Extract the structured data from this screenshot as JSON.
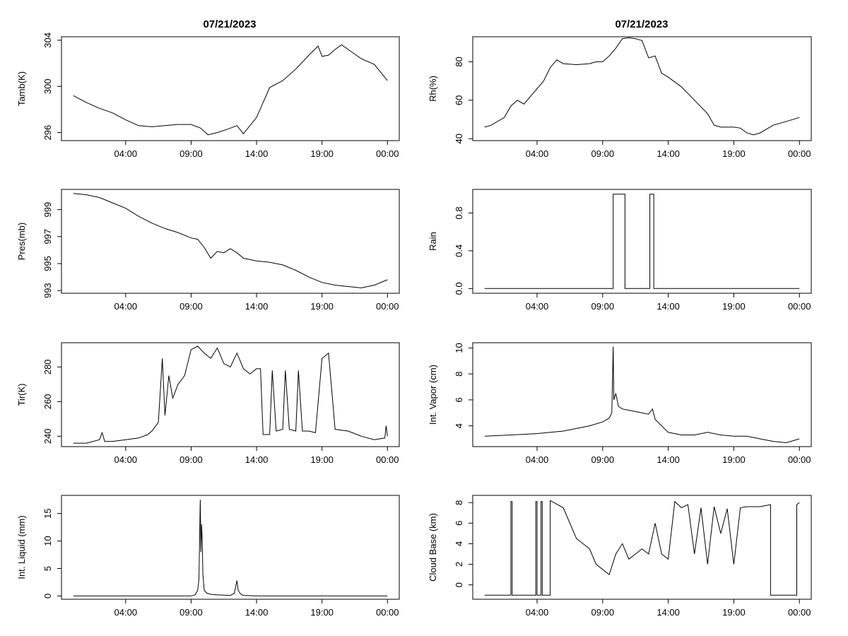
{
  "titles": {
    "left": "07/21/2023",
    "right": "07/21/2023"
  },
  "x_ticks": [
    "04:00",
    "09:00",
    "14:00",
    "19:00",
    "00:00"
  ],
  "chart_data": [
    {
      "type": "line",
      "id": "tamb",
      "ylabel": "Tamb(K)",
      "ylim": [
        295.3,
        304.3
      ],
      "yticks": [
        296,
        300,
        304
      ],
      "x_range_hours": [
        0,
        24
      ],
      "series": [
        {
          "name": "Tamb",
          "x": [
            0,
            1,
            2,
            3,
            4,
            5,
            6,
            7,
            8,
            9,
            9.7,
            10.3,
            11,
            11.8,
            12.5,
            13,
            14,
            15,
            16,
            17,
            18,
            18.7,
            19,
            19.5,
            20,
            20.5,
            21,
            22,
            23,
            24
          ],
          "y": [
            299.2,
            298.6,
            298.1,
            297.7,
            297.1,
            296.6,
            296.5,
            296.6,
            296.7,
            296.7,
            296.4,
            295.8,
            296.0,
            296.3,
            296.6,
            295.9,
            297.3,
            299.9,
            300.5,
            301.5,
            302.7,
            303.5,
            302.6,
            302.7,
            303.2,
            303.6,
            303.2,
            302.4,
            301.9,
            300.5
          ]
        }
      ]
    },
    {
      "type": "line",
      "id": "rh",
      "ylabel": "Rh(%)",
      "ylim": [
        39,
        93
      ],
      "yticks": [
        40,
        60,
        80
      ],
      "x_range_hours": [
        0,
        24
      ],
      "series": [
        {
          "name": "Rh",
          "x": [
            0,
            0.5,
            1.5,
            2,
            2.5,
            3,
            3.5,
            4,
            4.5,
            5,
            5.5,
            6,
            7,
            8,
            8.5,
            9,
            9.5,
            10,
            10.5,
            11,
            11.5,
            12,
            12.5,
            13,
            13.5,
            14,
            15,
            16,
            17,
            17.5,
            18,
            19,
            19.5,
            20,
            20.5,
            21,
            22,
            23,
            24
          ],
          "y": [
            46,
            47,
            51,
            57,
            60,
            58,
            62,
            66,
            70,
            77,
            81,
            79,
            78.5,
            79,
            80,
            80,
            83,
            87,
            92,
            92.5,
            92,
            91,
            82,
            83,
            74,
            72,
            67,
            60,
            53,
            47,
            46,
            46,
            45.5,
            43,
            42,
            43,
            47,
            49,
            51
          ]
        }
      ]
    },
    {
      "type": "line",
      "id": "pres",
      "ylabel": "Pres(mb)",
      "ylim": [
        992.8,
        1000.5
      ],
      "yticks": [
        993,
        995,
        997,
        999
      ],
      "x_range_hours": [
        0,
        24
      ],
      "series": [
        {
          "name": "Pres",
          "x": [
            0,
            1,
            2,
            3,
            4,
            5,
            6,
            7,
            8,
            9,
            9.5,
            10,
            10.5,
            11,
            11.5,
            12,
            12.5,
            13,
            14,
            15,
            16,
            17,
            18,
            19,
            20,
            21,
            22,
            23,
            24
          ],
          "y": [
            1000.2,
            1000.1,
            999.9,
            999.5,
            999.1,
            998.5,
            998.0,
            997.6,
            997.3,
            996.9,
            996.8,
            996.2,
            995.4,
            995.9,
            995.8,
            996.1,
            995.8,
            995.4,
            995.2,
            995.1,
            994.9,
            994.5,
            994.0,
            993.6,
            993.4,
            993.3,
            993.2,
            993.4,
            993.8
          ]
        }
      ]
    },
    {
      "type": "line",
      "id": "rain",
      "ylabel": "Rain",
      "ylim": [
        -0.05,
        1.05
      ],
      "yticks": [
        0.0,
        0.4,
        0.8
      ],
      "x_range_hours": [
        0,
        24
      ],
      "series": [
        {
          "name": "Rain",
          "x": [
            0,
            9.8,
            9.8,
            10.7,
            10.7,
            12.6,
            12.6,
            12.9,
            12.9,
            24
          ],
          "y": [
            0,
            0,
            1,
            1,
            0,
            0,
            1,
            1,
            0,
            0
          ]
        }
      ]
    },
    {
      "type": "line",
      "id": "tir",
      "ylabel": "Tir(K)",
      "ylim": [
        234,
        294
      ],
      "yticks": [
        240,
        260,
        280
      ],
      "x_range_hours": [
        0,
        24
      ],
      "series": [
        {
          "name": "Tir",
          "x": [
            0,
            1,
            2,
            2.2,
            2.4,
            3,
            4,
            5,
            5.7,
            6,
            6.5,
            6.8,
            7,
            7.3,
            7.6,
            8,
            8.5,
            9,
            9.5,
            10,
            10.5,
            11,
            11.5,
            12,
            12.5,
            13,
            13.5,
            14,
            14.3,
            14.5,
            15,
            15.2,
            15.5,
            16,
            16.2,
            16.5,
            17,
            17.2,
            17.5,
            18,
            18.5,
            19,
            19.5,
            20,
            21,
            22,
            23,
            23.8,
            23.9,
            24
          ],
          "y": [
            236,
            236,
            238,
            242,
            237,
            237,
            238,
            239,
            241,
            243,
            248,
            285,
            252,
            275,
            262,
            270,
            275,
            290,
            292,
            288,
            285,
            291,
            282,
            280,
            288,
            279,
            276,
            279,
            279,
            241,
            241,
            278,
            243,
            244,
            278,
            244,
            243,
            278,
            243,
            243,
            242,
            285,
            288,
            244,
            243,
            240,
            238,
            239,
            246,
            240
          ]
        }
      ]
    },
    {
      "type": "line",
      "id": "vapor",
      "ylabel": "Int. Vapor (cm)",
      "ylim": [
        2.4,
        10.4
      ],
      "yticks": [
        4,
        6,
        8,
        10
      ],
      "x_range_hours": [
        0,
        24
      ],
      "series": [
        {
          "name": "Int. Vapor",
          "x": [
            0,
            2,
            4,
            6,
            8,
            9,
            9.5,
            9.7,
            9.8,
            9.85,
            10,
            10.2,
            10.5,
            11,
            12,
            12.5,
            12.8,
            13,
            13.5,
            14,
            15,
            16,
            17,
            18,
            19,
            20,
            21,
            22,
            23,
            24
          ],
          "y": [
            3.2,
            3.3,
            3.4,
            3.6,
            4.0,
            4.3,
            4.6,
            5.0,
            10.1,
            6.0,
            6.5,
            5.5,
            5.3,
            5.2,
            5.0,
            4.9,
            5.3,
            4.5,
            4.0,
            3.5,
            3.3,
            3.3,
            3.5,
            3.3,
            3.2,
            3.2,
            3.0,
            2.8,
            2.7,
            3.0
          ]
        }
      ]
    },
    {
      "type": "line",
      "id": "liquid",
      "ylabel": "Int. Liquid (mm)",
      "ylim": [
        -0.6,
        18.3
      ],
      "yticks": [
        0,
        5,
        10,
        15
      ],
      "x_range_hours": [
        0,
        24
      ],
      "series": [
        {
          "name": "Int. Liquid",
          "x": [
            0,
            9,
            9.3,
            9.5,
            9.6,
            9.7,
            9.75,
            9.8,
            9.85,
            9.9,
            10,
            10.2,
            10.5,
            11,
            12,
            12.3,
            12.5,
            12.6,
            12.8,
            13,
            14,
            24
          ],
          "y": [
            0,
            0,
            0.2,
            1,
            3,
            17.5,
            8,
            13,
            10,
            4,
            1,
            0.5,
            0.3,
            0.2,
            0.1,
            0.5,
            2.8,
            1,
            0.3,
            0.1,
            0,
            0
          ]
        }
      ]
    },
    {
      "type": "line",
      "id": "cloudbase",
      "ylabel": "Cloud Base (km)",
      "ylim": [
        -1.4,
        8.7
      ],
      "yticks": [
        0,
        2,
        4,
        6,
        8
      ],
      "x_range_hours": [
        0,
        24
      ],
      "series": [
        {
          "name": "Cloud Base",
          "x": [
            0,
            2,
            2,
            2.1,
            2.1,
            3.9,
            3.9,
            4.0,
            4.0,
            4.3,
            4.3,
            4.4,
            4.4,
            5,
            5,
            6,
            6.5,
            7,
            7.5,
            8,
            8.5,
            9,
            9.5,
            10,
            10.5,
            11,
            11.5,
            12,
            12.5,
            13,
            13.5,
            14,
            14.5,
            15,
            15.5,
            16,
            16.5,
            17,
            17.5,
            18,
            18.5,
            19,
            19.5,
            20,
            21,
            21.8,
            21.8,
            23.8,
            23.8,
            24
          ],
          "y": [
            -1,
            -1,
            8.1,
            8.1,
            -1,
            -1,
            8.1,
            8.1,
            -1,
            -1,
            8.1,
            8.1,
            -1,
            -1,
            8.2,
            7.5,
            6,
            4.5,
            4,
            3.5,
            2,
            1.5,
            1,
            3,
            4,
            2.5,
            3,
            3.5,
            3,
            6,
            3,
            2.5,
            8.1,
            7.5,
            7.8,
            3,
            7.5,
            2,
            7.6,
            5,
            7.4,
            2,
            7.5,
            7.6,
            7.6,
            7.8,
            -1,
            -1,
            7.8,
            8.0
          ]
        }
      ]
    }
  ]
}
